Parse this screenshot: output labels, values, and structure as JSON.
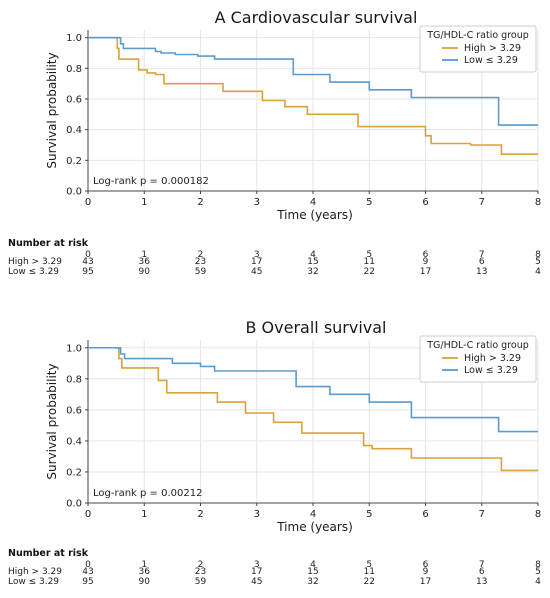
{
  "colors": {
    "high": "#D9A23B",
    "low": "#5A9BD0",
    "grid": "#e6e6e6",
    "axis": "#444444"
  },
  "chart_data": [
    {
      "type": "line",
      "subtype": "kaplan-meier",
      "title": "A Cardiovascular survival",
      "xlabel": "Time (years)",
      "ylabel": "Survival probability",
      "xlim": [
        0,
        8
      ],
      "ylim": [
        0,
        1.05
      ],
      "x_ticks": [
        "0",
        "1",
        "2",
        "3",
        "4",
        "5",
        "6",
        "7",
        "8"
      ],
      "y_ticks": [
        "0.0",
        "0.2",
        "0.4",
        "0.6",
        "0.8",
        "1.0"
      ],
      "grid": true,
      "legend_title": "TG/HDL-C ratio group",
      "legend_position": "top-right",
      "annotation": "Log-rank p = 0.000182",
      "series": [
        {
          "name": "High > 3.29",
          "color": "high",
          "x": [
            0,
            0.5,
            0.52,
            0.55,
            0.6,
            0.8,
            0.9,
            1.05,
            1.2,
            1.35,
            2.2,
            2.4,
            2.8,
            3.1,
            3.5,
            3.9,
            4.5,
            4.8,
            5.6,
            6.0,
            6.1,
            6.7,
            6.8,
            7.35,
            8.0
          ],
          "y": [
            1.0,
            1.0,
            0.93,
            0.86,
            0.86,
            0.86,
            0.79,
            0.77,
            0.76,
            0.7,
            0.7,
            0.65,
            0.65,
            0.59,
            0.55,
            0.5,
            0.5,
            0.42,
            0.42,
            0.36,
            0.31,
            0.31,
            0.3,
            0.24,
            0.24
          ]
        },
        {
          "name": "Low ≤ 3.29",
          "color": "low",
          "x": [
            0,
            0.52,
            0.58,
            0.63,
            1.0,
            1.2,
            1.3,
            1.55,
            1.95,
            2.1,
            2.25,
            3.6,
            3.65,
            4.1,
            4.3,
            4.9,
            5.0,
            5.75,
            7.3,
            8.0
          ],
          "y": [
            1.0,
            1.0,
            0.96,
            0.93,
            0.93,
            0.91,
            0.9,
            0.89,
            0.88,
            0.88,
            0.86,
            0.86,
            0.76,
            0.76,
            0.71,
            0.71,
            0.66,
            0.61,
            0.43,
            0.43
          ]
        }
      ],
      "risk_table": {
        "header": "Number at risk",
        "times": [
          "0",
          "1",
          "2",
          "3",
          "4",
          "5",
          "6",
          "7",
          "8"
        ],
        "rows": [
          {
            "label": "High > 3.29",
            "values": [
              "43",
              "36",
              "23",
              "17",
              "15",
              "11",
              "9",
              "6",
              "5"
            ]
          },
          {
            "label": "Low ≤ 3.29",
            "values": [
              "95",
              "90",
              "59",
              "45",
              "32",
              "22",
              "17",
              "13",
              "4"
            ]
          }
        ]
      }
    },
    {
      "type": "line",
      "subtype": "kaplan-meier",
      "title": "B Overall survival",
      "xlabel": "Time (years)",
      "ylabel": "Survival probability",
      "xlim": [
        0,
        8
      ],
      "ylim": [
        0,
        1.05
      ],
      "x_ticks": [
        "0",
        "1",
        "2",
        "3",
        "4",
        "5",
        "6",
        "7",
        "8"
      ],
      "y_ticks": [
        "0.0",
        "0.2",
        "0.4",
        "0.6",
        "0.8",
        "1.0"
      ],
      "grid": true,
      "legend_title": "TG/HDL-C ratio group",
      "legend_position": "top-right",
      "annotation": "Log-rank p = 0.00212",
      "series": [
        {
          "name": "High > 3.29",
          "color": "high",
          "x": [
            0,
            0.5,
            0.55,
            0.6,
            0.9,
            1.25,
            1.4,
            2.2,
            2.3,
            2.8,
            3.3,
            3.8,
            4.6,
            4.9,
            5.05,
            5.4,
            5.75,
            7.35,
            8.0
          ],
          "y": [
            1.0,
            1.0,
            0.93,
            0.87,
            0.87,
            0.79,
            0.71,
            0.71,
            0.65,
            0.58,
            0.52,
            0.45,
            0.45,
            0.37,
            0.35,
            0.35,
            0.29,
            0.21,
            0.21
          ]
        },
        {
          "name": "Low ≤ 3.29",
          "color": "low",
          "x": [
            0,
            0.5,
            0.58,
            0.65,
            1.2,
            1.5,
            2.0,
            2.1,
            2.25,
            3.6,
            3.7,
            4.1,
            4.3,
            4.9,
            5.0,
            5.75,
            7.3,
            8.0
          ],
          "y": [
            1.0,
            1.0,
            0.96,
            0.93,
            0.93,
            0.9,
            0.88,
            0.88,
            0.85,
            0.85,
            0.75,
            0.75,
            0.7,
            0.7,
            0.65,
            0.55,
            0.46,
            0.46
          ]
        }
      ],
      "risk_table": {
        "header": "Number at risk",
        "times": [
          "0",
          "1",
          "2",
          "3",
          "4",
          "5",
          "6",
          "7",
          "8"
        ],
        "rows": [
          {
            "label": "High > 3.29",
            "values": [
              "43",
              "36",
              "23",
              "17",
              "15",
              "11",
              "9",
              "6",
              "5"
            ]
          },
          {
            "label": "Low ≤ 3.29",
            "values": [
              "95",
              "90",
              "59",
              "45",
              "32",
              "22",
              "17",
              "13",
              "4"
            ]
          }
        ]
      }
    }
  ]
}
